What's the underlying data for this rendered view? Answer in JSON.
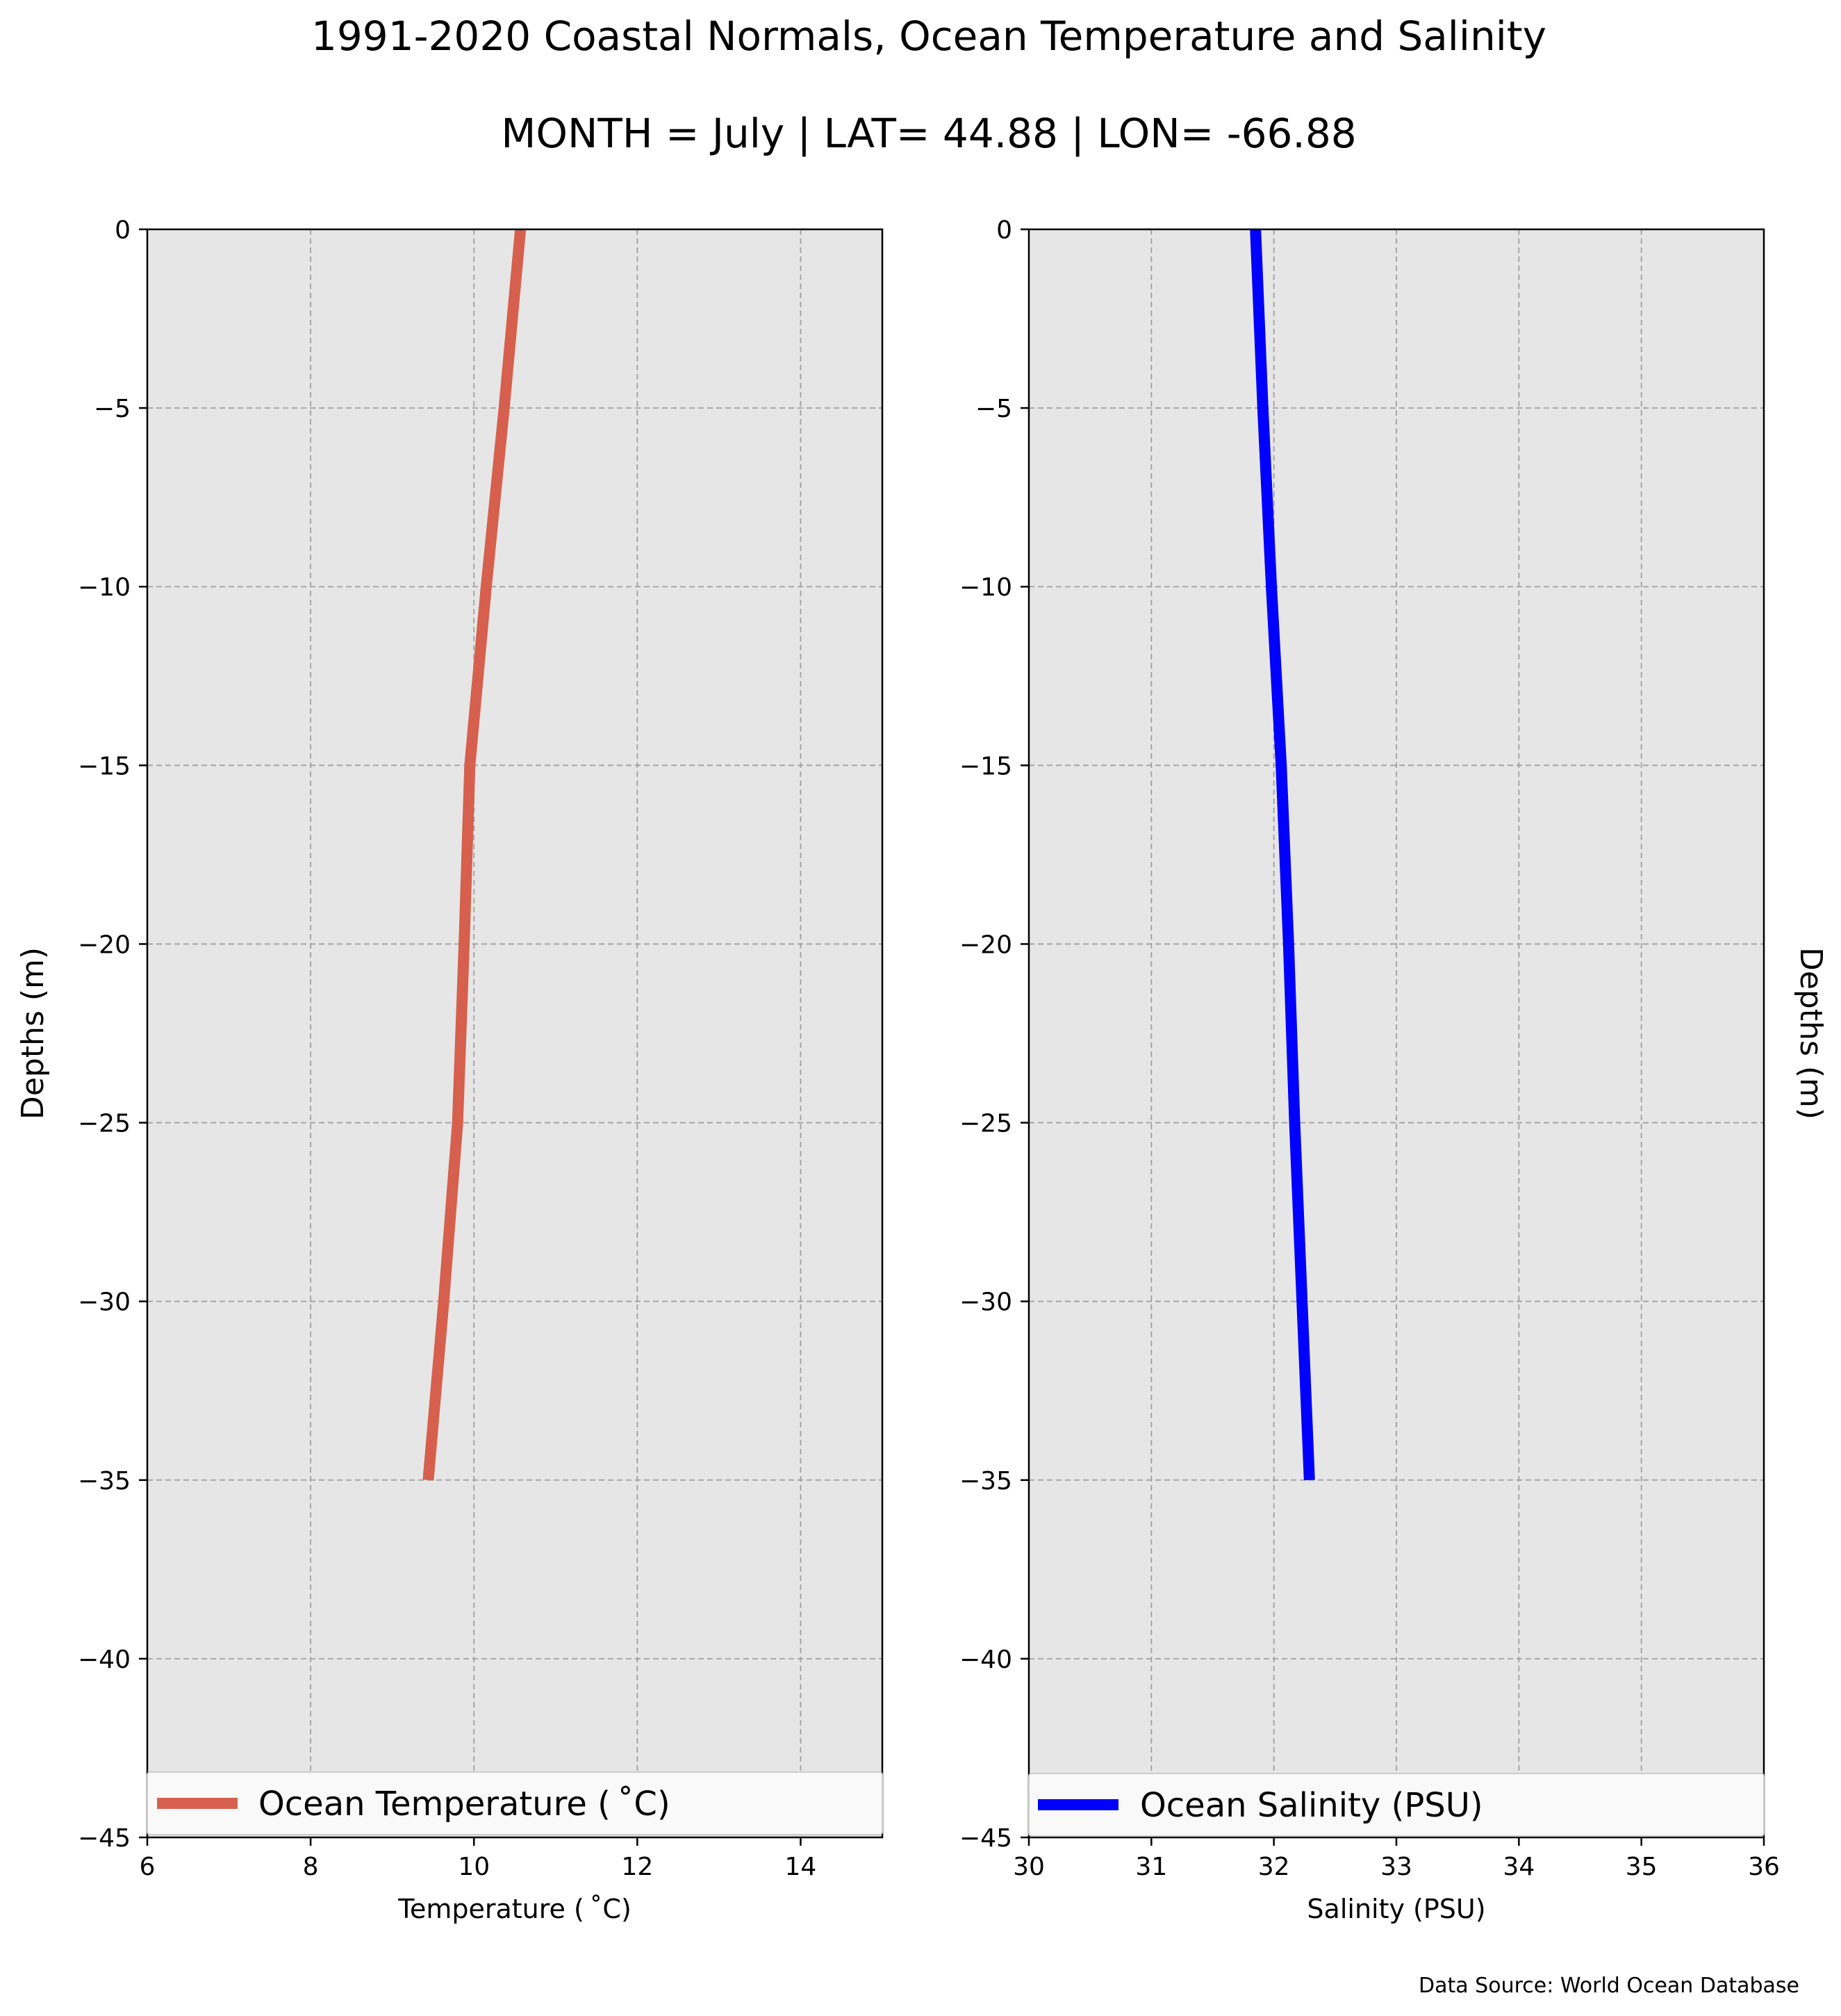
{
  "figure": {
    "title": "1991-2020 Coastal Normals, Ocean Temperature and Salinity",
    "subtitle": "MONTH = July | LAT= 44.88 | LON= -66.88",
    "source": "Data Source: World Ocean Database"
  },
  "chart_data": [
    {
      "type": "line",
      "orientation": "vertical-profile",
      "xlabel": "Temperature ($^\\circ$C)",
      "xlabel_display": "Temperature ( ˚C)",
      "ylabel": "Depths (m)",
      "xlim": [
        6,
        15
      ],
      "ylim": [
        -45,
        0
      ],
      "x_ticks": [
        6,
        8,
        10,
        12,
        14
      ],
      "y_ticks": [
        0,
        -5,
        -10,
        -15,
        -20,
        -25,
        -30,
        -35,
        -40,
        -45
      ],
      "x_tick_labels": [
        "6",
        "8",
        "10",
        "12",
        "14"
      ],
      "y_tick_labels": [
        "0",
        "−5",
        "−10",
        "−15",
        "−20",
        "−25",
        "−30",
        "−35",
        "−40",
        "−45"
      ],
      "grid": true,
      "legend": "lower-center",
      "background": "#e6e6e6",
      "series": [
        {
          "name": "Ocean Temperature ( ˚C)",
          "color": "#d6604d",
          "points": [
            {
              "x": 10.57,
              "y": 0
            },
            {
              "x": 10.37,
              "y": -5
            },
            {
              "x": 10.15,
              "y": -10
            },
            {
              "x": 9.95,
              "y": -15
            },
            {
              "x": 9.88,
              "y": -20
            },
            {
              "x": 9.8,
              "y": -25
            },
            {
              "x": 9.63,
              "y": -30
            },
            {
              "x": 9.44,
              "y": -35
            }
          ]
        }
      ]
    },
    {
      "type": "line",
      "orientation": "vertical-profile",
      "xlabel": "Salinity (PSU)",
      "ylabel": "Depths (m)",
      "xlim": [
        30,
        36
      ],
      "ylim": [
        -45,
        0
      ],
      "x_ticks": [
        30,
        31,
        32,
        33,
        34,
        35,
        36
      ],
      "y_ticks": [
        0,
        -5,
        -10,
        -15,
        -20,
        -25,
        -30,
        -35,
        -40,
        -45
      ],
      "x_tick_labels": [
        "30",
        "31",
        "32",
        "33",
        "34",
        "35",
        "36"
      ],
      "y_tick_labels": [
        "0",
        "−5",
        "−10",
        "−15",
        "−20",
        "−25",
        "−30",
        "−35",
        "−40",
        "−45"
      ],
      "grid": true,
      "legend": "lower-center",
      "background": "#e6e6e6",
      "series": [
        {
          "name": "Ocean Salinity (PSU)",
          "color": "#0000ff",
          "points": [
            {
              "x": 31.85,
              "y": 0
            },
            {
              "x": 31.91,
              "y": -5
            },
            {
              "x": 31.98,
              "y": -10
            },
            {
              "x": 32.06,
              "y": -15
            },
            {
              "x": 32.12,
              "y": -20
            },
            {
              "x": 32.17,
              "y": -25
            },
            {
              "x": 32.23,
              "y": -30
            },
            {
              "x": 32.29,
              "y": -35
            }
          ]
        }
      ]
    }
  ]
}
